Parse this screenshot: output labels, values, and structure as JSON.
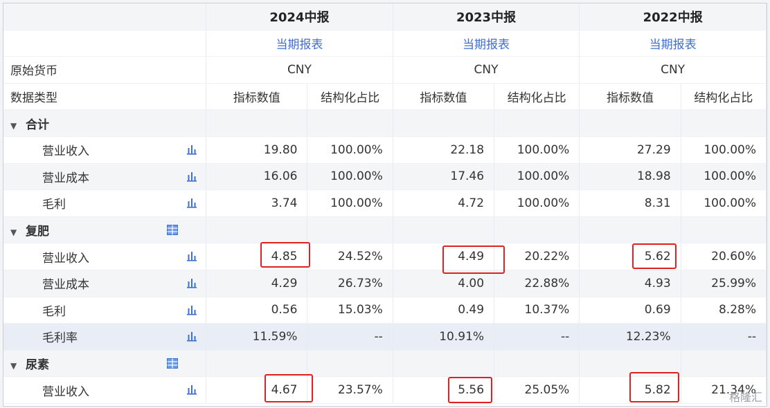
{
  "header": {
    "periods": [
      "2024中报",
      "2023中报",
      "2022中报"
    ],
    "report_type": "当期报表",
    "currency_label": "原始货币",
    "currency": "CNY",
    "data_type_label": "数据类型",
    "value_col": "指标数值",
    "ratio_col": "结构化占比"
  },
  "groups": [
    {
      "title": "合计",
      "rows": [
        {
          "label": "营业收入",
          "v": [
            "19.80",
            "22.18",
            "27.29"
          ],
          "p": [
            "100.00%",
            "100.00%",
            "100.00%"
          ]
        },
        {
          "label": "营业成本",
          "v": [
            "16.06",
            "17.46",
            "18.98"
          ],
          "p": [
            "100.00%",
            "100.00%",
            "100.00%"
          ]
        },
        {
          "label": "毛利",
          "v": [
            "3.74",
            "4.72",
            "8.31"
          ],
          "p": [
            "100.00%",
            "100.00%",
            "100.00%"
          ]
        }
      ]
    },
    {
      "title": "复肥",
      "rows": [
        {
          "label": "营业收入",
          "v": [
            "4.85",
            "4.49",
            "5.62"
          ],
          "p": [
            "24.52%",
            "20.22%",
            "20.60%"
          ]
        },
        {
          "label": "营业成本",
          "v": [
            "4.29",
            "4.00",
            "4.93"
          ],
          "p": [
            "26.73%",
            "22.88%",
            "25.99%"
          ]
        },
        {
          "label": "毛利",
          "v": [
            "0.56",
            "0.49",
            "0.69"
          ],
          "p": [
            "15.03%",
            "10.37%",
            "8.28%"
          ]
        },
        {
          "label": "毛利率",
          "v": [
            "11.59%",
            "10.91%",
            "12.23%"
          ],
          "p": [
            "--",
            "--",
            "--"
          ]
        }
      ]
    },
    {
      "title": "尿素",
      "rows": [
        {
          "label": "营业收入",
          "v": [
            "4.67",
            "5.56",
            "5.82"
          ],
          "p": [
            "23.57%",
            "25.05%",
            "21.34%"
          ]
        }
      ]
    }
  ],
  "watermark": "格隆汇",
  "colors": {
    "link": "#3d6fd1",
    "highlight_box": "#e02020",
    "icon": "#3d6fd1"
  }
}
